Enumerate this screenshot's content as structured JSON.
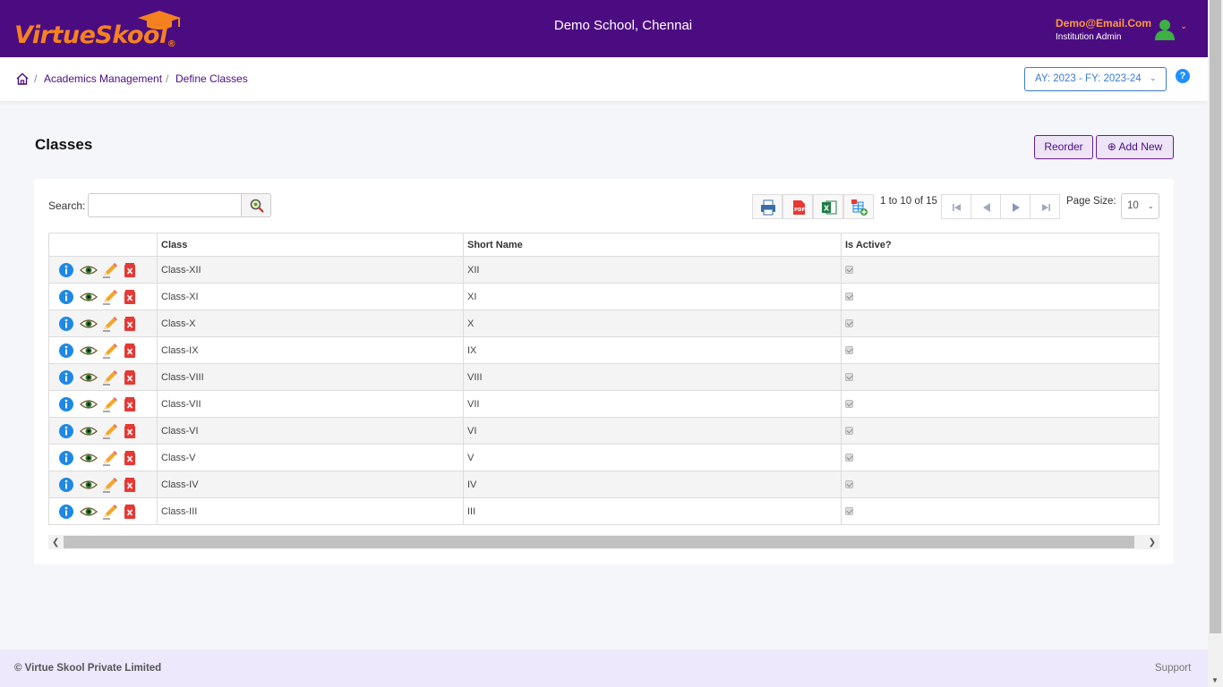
{
  "header": {
    "logo": "VirtueSkool",
    "school_name": "Demo School, Chennai",
    "user_email": "Demo@Email.Com",
    "user_role": "Institution Admin"
  },
  "breadcrumb": {
    "items": [
      "Academics Management",
      "Define Classes"
    ],
    "separator": "/"
  },
  "year_selector": "AY: 2023 - FY: 2023-24",
  "help_label": "?",
  "page": {
    "title": "Classes",
    "reorder_label": "Reorder",
    "add_new_label": "⊕ Add New"
  },
  "toolbar": {
    "search_label": "Search:",
    "search_value": "",
    "pager_info": "1 to 10 of 15",
    "page_size_label": "Page Size:",
    "page_size_value": "10"
  },
  "table": {
    "columns": [
      "",
      "Class",
      "Short Name",
      "Is Active?"
    ],
    "rows": [
      {
        "class": "Class-XII",
        "short": "XII",
        "active": true
      },
      {
        "class": "Class-XI",
        "short": "XI",
        "active": true
      },
      {
        "class": "Class-X",
        "short": "X",
        "active": true
      },
      {
        "class": "Class-IX",
        "short": "IX",
        "active": true
      },
      {
        "class": "Class-VIII",
        "short": "VIII",
        "active": true
      },
      {
        "class": "Class-VII",
        "short": "VII",
        "active": true
      },
      {
        "class": "Class-VI",
        "short": "VI",
        "active": true
      },
      {
        "class": "Class-V",
        "short": "V",
        "active": true
      },
      {
        "class": "Class-IV",
        "short": "IV",
        "active": true
      },
      {
        "class": "Class-III",
        "short": "III",
        "active": true
      }
    ]
  },
  "footer": {
    "copyright": "© Virtue Skool Private Limited",
    "support": "Support"
  },
  "colors": {
    "header_bg": "#4b0c82",
    "accent_orange": "#f58220",
    "link_blue": "#3a7bd5"
  }
}
